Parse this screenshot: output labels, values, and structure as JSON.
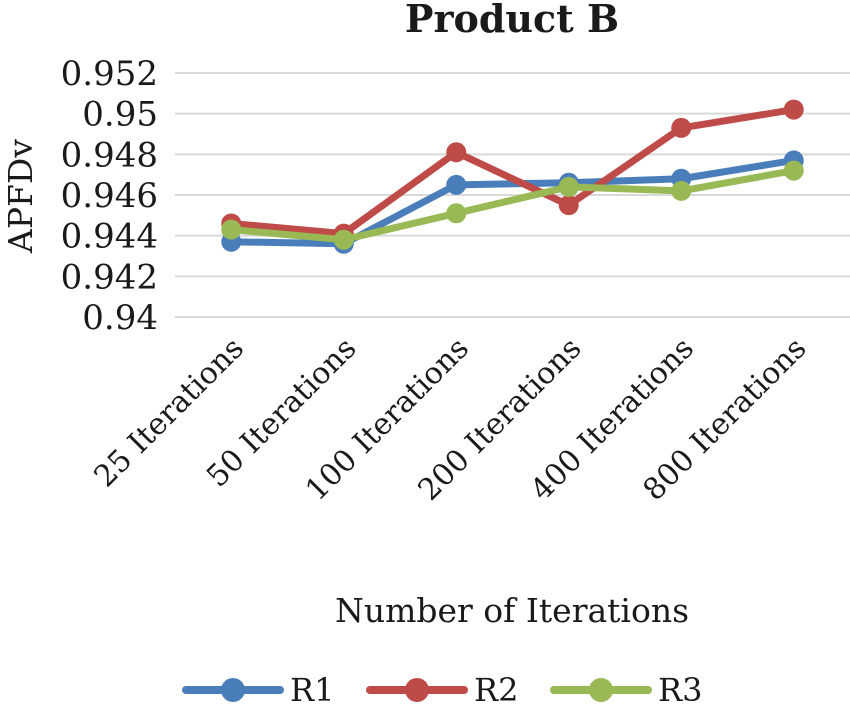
{
  "chart_data": {
    "type": "line",
    "title": "Product B",
    "xlabel": "Number of Iterations",
    "ylabel": "APFDv",
    "categories": [
      "25  Iterations",
      "50 Iterations",
      "100 Iterations",
      "200 Iterations",
      "400 Iterations",
      "800 Iterations"
    ],
    "ylim": [
      0.94,
      0.952
    ],
    "yticks": [
      "0.94",
      "0.942",
      "0.944",
      "0.946",
      "0.948",
      "0.95",
      "0.952"
    ],
    "grid": true,
    "legend_position": "bottom",
    "series": [
      {
        "name": "R1",
        "color": "#4a7ebb",
        "values": [
          0.9437,
          0.9436,
          0.9465,
          0.9466,
          0.9468,
          0.9477
        ]
      },
      {
        "name": "R2",
        "color": "#be4b48",
        "values": [
          0.9446,
          0.9441,
          0.9481,
          0.9455,
          0.9493,
          0.9502
        ]
      },
      {
        "name": "R3",
        "color": "#98b954",
        "values": [
          0.9443,
          0.9438,
          0.9451,
          0.9464,
          0.9462,
          0.9472
        ]
      }
    ]
  }
}
